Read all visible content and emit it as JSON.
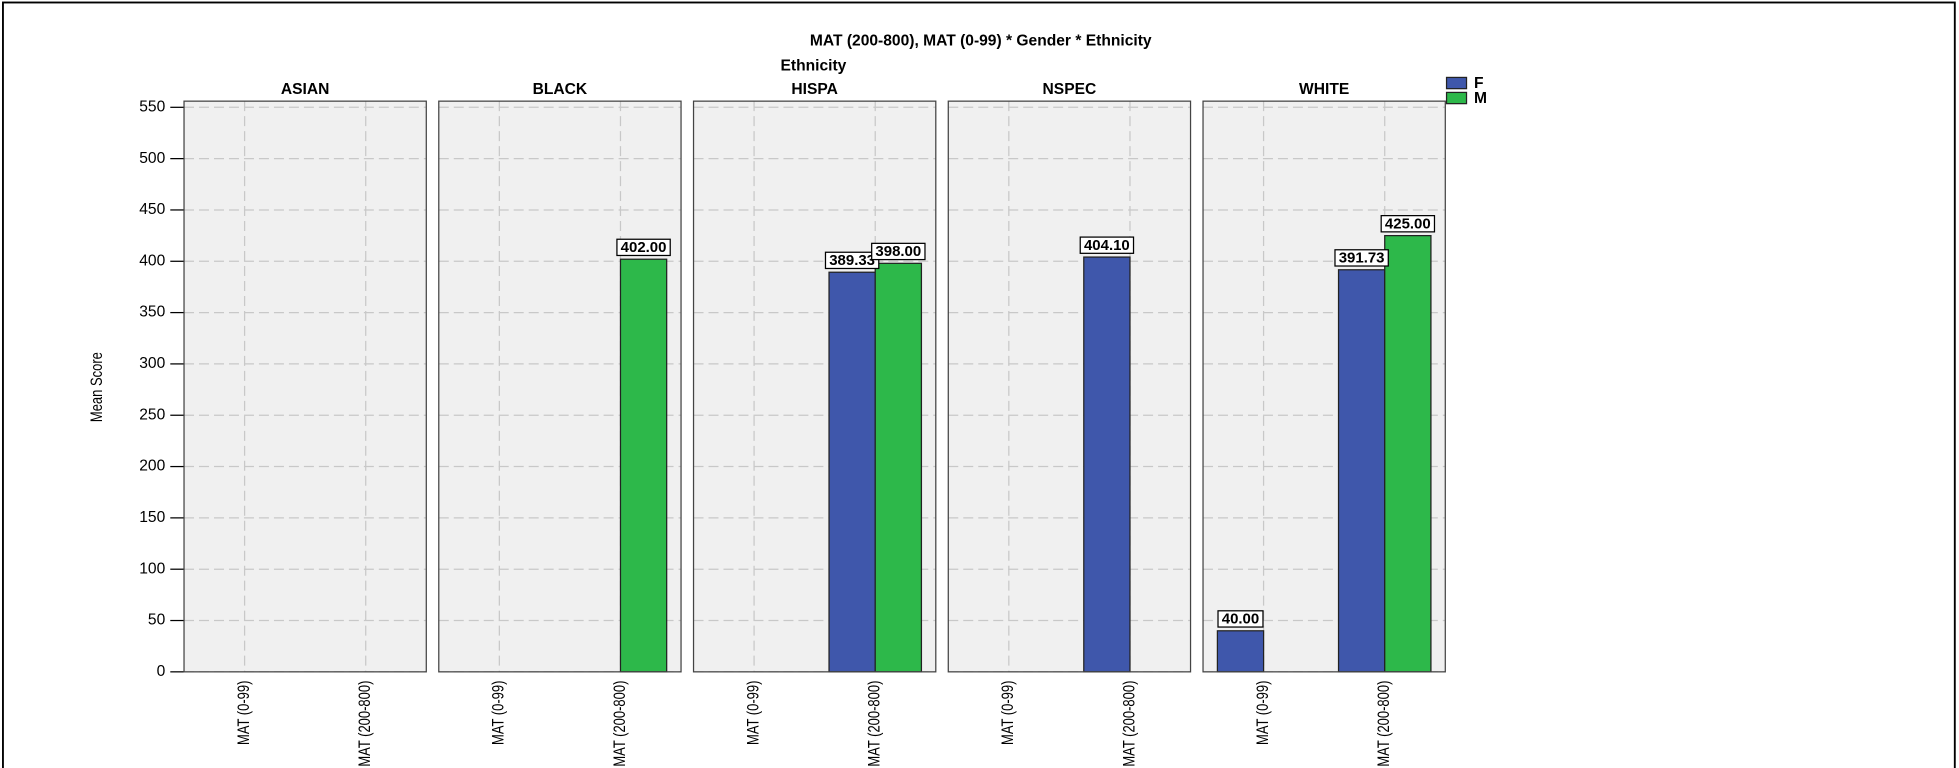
{
  "chart_data": {
    "type": "bar",
    "title": "MAT (200-800), MAT (0-99) * Gender * Ethnicity",
    "panel_axis_title": "Ethnicity",
    "y_label": "Mean Score",
    "panels": [
      "ASIAN",
      "BLACK",
      "HISPA",
      "NSPEC",
      "WHITE"
    ],
    "categories": [
      "MAT (0-99)",
      "MAT (200-800)"
    ],
    "series": [
      {
        "name": "F",
        "color": "#3f57ab",
        "values": [
          [
            null,
            null
          ],
          [
            null,
            null
          ],
          [
            null,
            389.33
          ],
          [
            null,
            404.1
          ],
          [
            40,
            391.73
          ]
        ],
        "value_labels": [
          [
            null,
            null
          ],
          [
            null,
            null
          ],
          [
            null,
            "389.33"
          ],
          [
            null,
            "404.10"
          ],
          [
            "40.00",
            "391.73"
          ]
        ]
      },
      {
        "name": "M",
        "color": "#2db84a",
        "values": [
          [
            null,
            null
          ],
          [
            null,
            402
          ],
          [
            null,
            398
          ],
          [
            null,
            null
          ],
          [
            null,
            425
          ]
        ],
        "value_labels": [
          [
            null,
            null
          ],
          [
            null,
            "402.00"
          ],
          [
            null,
            "398.00"
          ],
          [
            null,
            null
          ],
          [
            null,
            "425.00"
          ]
        ]
      }
    ],
    "ylim": [
      0,
      556
    ],
    "yticks": [
      0,
      50,
      100,
      150,
      200,
      250,
      300,
      350,
      400,
      450,
      500,
      550
    ],
    "grid": true,
    "legend": "top-right"
  }
}
